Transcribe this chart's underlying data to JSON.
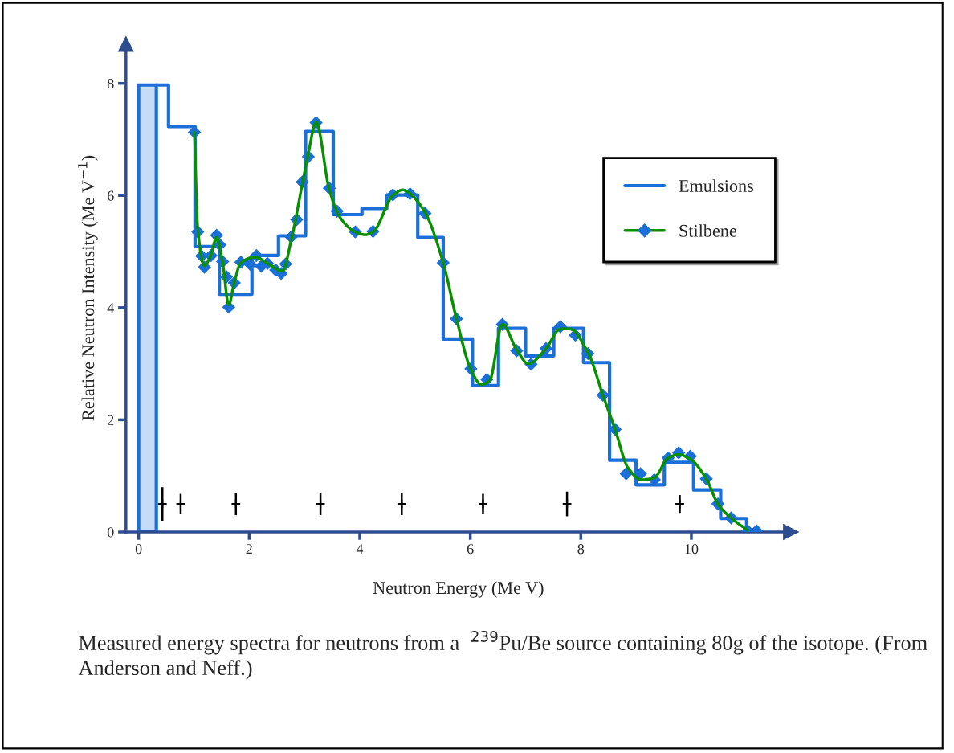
{
  "chart_data": {
    "type": "line",
    "xlabel": "Neutron Energy (Me V)",
    "ylabel": "Relative Neutron Intensity (Me V$^{−1}$)",
    "xlim": [
      -0.23,
      11.8
    ],
    "ylim": [
      0,
      8.7
    ],
    "xticks": [
      0,
      2,
      4,
      6,
      8,
      10
    ],
    "yticks": [
      0,
      2,
      4,
      6,
      8
    ],
    "grid": false,
    "legend": "right",
    "series": [
      {
        "type": "histogram",
        "color": "#1a6fd8",
        "bins": [
          0,
          0.32
        ],
        "values": [
          7.97
        ],
        "colors": [
          "#c5dcf8"
        ]
      },
      {
        "name": "Emulsions",
        "type": "step",
        "color": "#1a6fd8",
        "x": [
          0.32,
          0.54,
          1.02,
          1.46,
          2.05,
          2.53,
          3.02,
          3.52,
          4.04,
          4.49,
          5.05,
          5.51,
          6.04,
          6.51,
          7.0,
          7.51,
          8.05,
          8.52,
          9.0,
          9.51,
          10.04,
          10.53,
          11.0
        ],
        "values": [
          7.97,
          7.23,
          5.09,
          4.24,
          4.93,
          5.28,
          7.14,
          5.66,
          5.77,
          6.01,
          5.25,
          3.44,
          2.61,
          3.63,
          3.14,
          3.63,
          3.02,
          1.28,
          0.84,
          1.24,
          0.75,
          0.24,
          0
        ]
      },
      {
        "name": "Stilbene",
        "type": "scatter",
        "color": "#1a6fd8",
        "marker": "diamond",
        "x": [
          1.01,
          1.07,
          1.14,
          1.19,
          1.31,
          1.41,
          1.47,
          1.52,
          1.59,
          1.63,
          1.73,
          1.85,
          2.02,
          2.13,
          2.22,
          2.33,
          2.48,
          2.58,
          2.66,
          2.76,
          2.86,
          2.96,
          3.07,
          3.21,
          3.45,
          3.59,
          3.92,
          4.24,
          4.6,
          4.91,
          5.18,
          5.51,
          5.75,
          6.01,
          6.3,
          6.58,
          6.84,
          7.1,
          7.37,
          7.63,
          7.9,
          8.13,
          8.4,
          8.62,
          8.82,
          9.08,
          9.33,
          9.58,
          9.77,
          9.98,
          10.27,
          10.48,
          10.72,
          11.02,
          11.18
        ],
        "values": [
          7.13,
          5.35,
          4.92,
          4.72,
          4.93,
          5.29,
          5.12,
          4.82,
          4.55,
          4.01,
          4.44,
          4.81,
          4.77,
          4.93,
          4.74,
          4.79,
          4.67,
          4.61,
          4.78,
          5.26,
          5.57,
          6.24,
          6.69,
          7.3,
          6.13,
          5.72,
          5.35,
          5.36,
          6.01,
          6.03,
          5.68,
          4.8,
          3.8,
          2.91,
          2.72,
          3.7,
          3.23,
          2.99,
          3.27,
          3.66,
          3.51,
          3.18,
          2.44,
          1.83,
          1.04,
          1.04,
          0.93,
          1.32,
          1.41,
          1.35,
          0.95,
          0.5,
          0.25,
          0.02,
          0.02
        ]
      },
      {
        "color": "#089000",
        "line_style": "solid",
        "marker": "none",
        "x": [
          1.01,
          1.07,
          1.19,
          1.31,
          1.41,
          1.52,
          1.63,
          1.73,
          1.85,
          2.1,
          2.4,
          2.6,
          2.76,
          2.96,
          3.07,
          3.21,
          3.45,
          3.65,
          3.92,
          4.1,
          4.24,
          4.6,
          4.78,
          4.91,
          5.18,
          5.51,
          5.75,
          6.01,
          6.2,
          6.35,
          6.58,
          6.84,
          7.05,
          7.37,
          7.63,
          7.8,
          8.13,
          8.4,
          8.62,
          8.85,
          9.1,
          9.33,
          9.58,
          9.77,
          9.98,
          10.27,
          10.48,
          10.72,
          11.02
        ],
        "values": [
          7.13,
          5.4,
          4.75,
          4.95,
          5.25,
          4.8,
          4.05,
          4.45,
          4.8,
          4.9,
          4.75,
          4.65,
          5.2,
          6.2,
          6.75,
          7.3,
          6.1,
          5.6,
          5.35,
          5.3,
          5.35,
          6.0,
          6.1,
          6.03,
          5.7,
          4.8,
          3.8,
          2.9,
          2.63,
          2.7,
          3.7,
          3.25,
          3.0,
          3.27,
          3.62,
          3.62,
          3.2,
          2.44,
          1.83,
          1.15,
          0.93,
          0.97,
          1.32,
          1.38,
          1.3,
          0.95,
          0.5,
          0.25,
          0.03
        ]
      },
      {
        "type": "scatter",
        "color": "#000000",
        "marker": "cross",
        "x": [
          0.43,
          0.76,
          1.76,
          3.29,
          4.76,
          6.23,
          7.75,
          9.79
        ],
        "values": [
          0.5,
          0.5,
          0.5,
          0.5,
          0.5,
          0.5,
          0.5,
          0.5
        ],
        "errors": [
          0.3,
          0.18,
          0.2,
          0.2,
          0.2,
          0.18,
          0.22,
          0.16
        ]
      }
    ],
    "annotations": [
      "Measured energy spectra for neutrons from a  $^{239}$Pu/Be source containing 80g of the isotope. (From Anderson and Neff.)"
    ]
  }
}
